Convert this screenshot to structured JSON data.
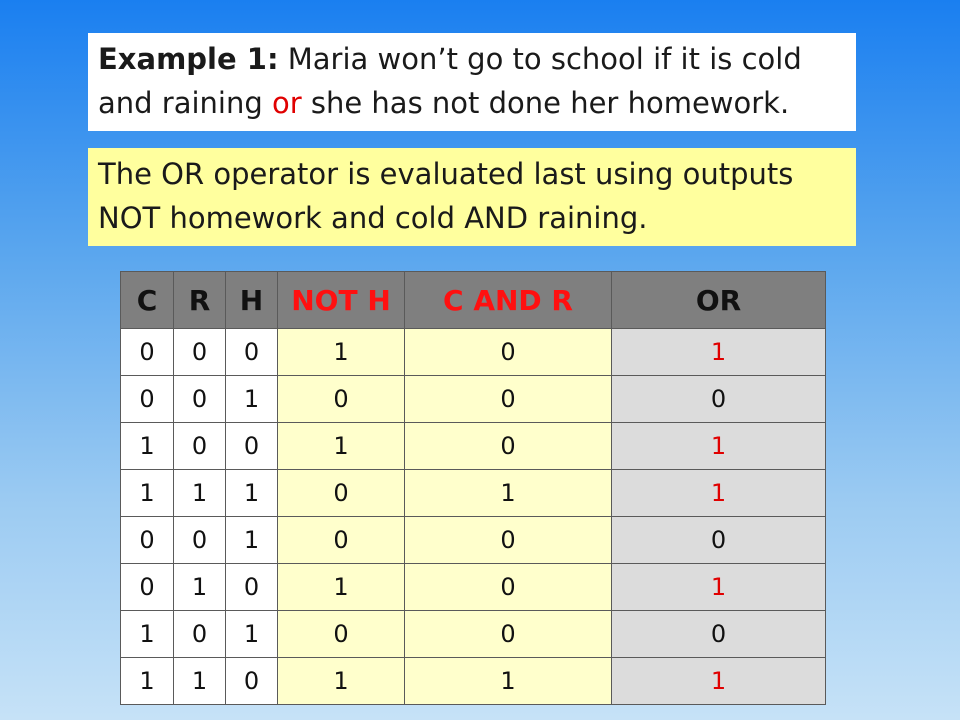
{
  "example": {
    "label": "Example 1:",
    "text_before": " Maria won’t go to school if it is cold and raining ",
    "highlight": "or",
    "text_after": " she has not done her homework."
  },
  "note": {
    "text": "The OR operator is evaluated last using outputs NOT homework and cold AND raining."
  },
  "table": {
    "headers": [
      "C",
      "R",
      "H",
      "NOT H",
      "C AND R",
      "OR"
    ],
    "rows": [
      [
        "0",
        "0",
        "0",
        "1",
        "0",
        "1"
      ],
      [
        "0",
        "0",
        "1",
        "0",
        "0",
        "0"
      ],
      [
        "1",
        "0",
        "0",
        "1",
        "0",
        "1"
      ],
      [
        "1",
        "1",
        "1",
        "0",
        "1",
        "1"
      ],
      [
        "0",
        "0",
        "1",
        "0",
        "0",
        "0"
      ],
      [
        "0",
        "1",
        "0",
        "1",
        "0",
        "1"
      ],
      [
        "1",
        "0",
        "1",
        "0",
        "0",
        "0"
      ],
      [
        "1",
        "1",
        "0",
        "1",
        "1",
        "1"
      ]
    ]
  },
  "colors": {
    "background_top": "#1a7ff0",
    "background_bottom": "#c6e2f7",
    "note_background": "#ffff9e",
    "header_background": "#7f7f7f",
    "intermediate_column_background": "#ffffcc",
    "output_column_background": "#dcdcdc",
    "highlight_red": "#e00000"
  }
}
